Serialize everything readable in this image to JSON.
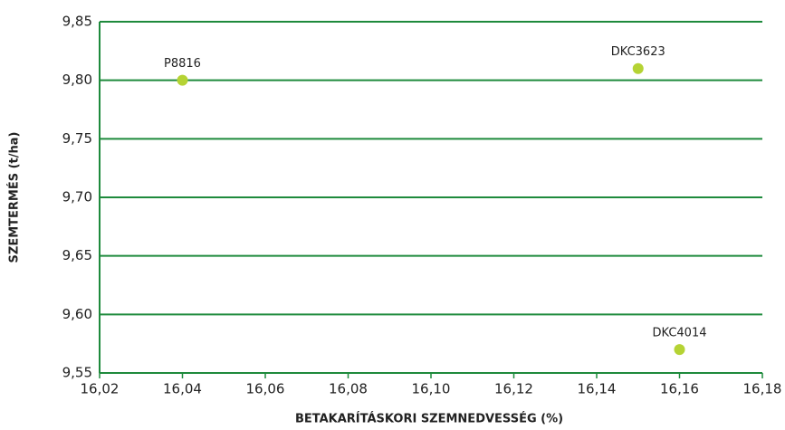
{
  "chart_data": {
    "type": "scatter",
    "xlabel": "BETAKARÍTÁSKORI SZEMNEDVESSÉG (%)",
    "ylabel": "SZEMTERMÉS (t/ha)",
    "x": [
      16.04,
      16.15,
      16.16
    ],
    "values": [
      9.8,
      9.81,
      9.57
    ],
    "point_labels": [
      "P8816",
      "DKC3623",
      "DKC4014"
    ],
    "color": "#b5d334",
    "axis_color": "#1e8a3c",
    "xlim": [
      16.02,
      16.18
    ],
    "xticks": [
      {
        "value": 16.02,
        "label": "16,02"
      },
      {
        "value": 16.04,
        "label": "16,04"
      },
      {
        "value": 16.06,
        "label": "16,06"
      },
      {
        "value": 16.08,
        "label": "16,08"
      },
      {
        "value": 16.1,
        "label": "16,10"
      },
      {
        "value": 16.12,
        "label": "16,12"
      },
      {
        "value": 16.14,
        "label": "16,14"
      },
      {
        "value": 16.16,
        "label": "16,16"
      },
      {
        "value": 16.18,
        "label": "16,18"
      }
    ],
    "ylim": [
      9.55,
      9.85
    ],
    "yticks": [
      {
        "value": 9.55,
        "label": "9,55"
      },
      {
        "value": 9.6,
        "label": "9,60"
      },
      {
        "value": 9.65,
        "label": "9,65"
      },
      {
        "value": 9.7,
        "label": "9,70"
      },
      {
        "value": 9.75,
        "label": "9,75"
      },
      {
        "value": 9.8,
        "label": "9,80"
      },
      {
        "value": 9.85,
        "label": "9,85"
      }
    ],
    "grid": true
  }
}
